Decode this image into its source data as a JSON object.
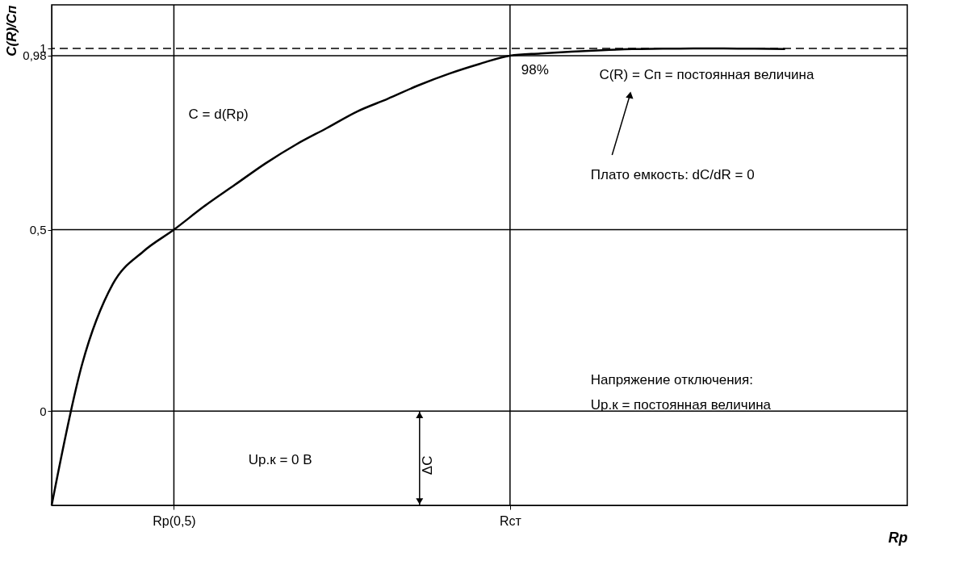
{
  "chart_data": {
    "type": "line",
    "ylabel": "C(R)/Cп",
    "xlabel": "Rp",
    "categories": [
      null,
      null,
      null,
      null,
      "Rp(0,5)",
      null,
      null,
      null,
      null,
      null,
      null,
      null,
      null,
      null,
      null,
      "Rст",
      null,
      null,
      null,
      null,
      null,
      null,
      null,
      null,
      null,
      null,
      null,
      null,
      null
    ],
    "series": [
      {
        "color": "#000000",
        "values": [
          -0.26,
          0.13,
          0.35,
          0.44,
          0.5,
          0.565,
          0.624,
          0.683,
          0.735,
          0.78,
          0.826,
          0.861,
          0.898,
          0.93,
          0.957,
          0.98,
          0.986,
          0.991,
          0.995,
          0.998,
          0.999,
          1.0,
          1.0,
          0.999,
          0.998,
          null,
          null,
          null,
          null
        ]
      }
    ],
    "ylim": [
      -0.26,
      1.12
    ],
    "yticks": [
      0,
      {
        "value": 0.5,
        "label": "0,5"
      },
      {
        "value": 0.98,
        "label": "0,98"
      },
      1
    ],
    "ref_lines": [
      {
        "axis": "y",
        "value": 0,
        "color": "#000000"
      },
      {
        "axis": "y",
        "value": 1,
        "color": "#000000",
        "line_style": "dashed"
      },
      {
        "axis": "y",
        "value": 0.5,
        "color": "#000000"
      },
      {
        "axis": "y",
        "value": 0.98,
        "color": "#000000"
      },
      {
        "axis": "x",
        "value": "Rp(0,5)",
        "color": "#000000"
      },
      {
        "axis": "x",
        "value": "Rст",
        "color": "#000000"
      }
    ],
    "annotations": [
      "C = d(Rp)",
      {
        "text": "98%",
        "x": "Rст",
        "y": 0.98
      },
      "C(R) = Cп = постоянная величина",
      "Плато емкость: dC/dR = 0",
      "Напряжение отключения:",
      "Uр.к = постоянная величина",
      "Uр.к = 0 В",
      "ΔC"
    ],
    "grid": false,
    "marker": "none",
    "line_style": "solid"
  }
}
